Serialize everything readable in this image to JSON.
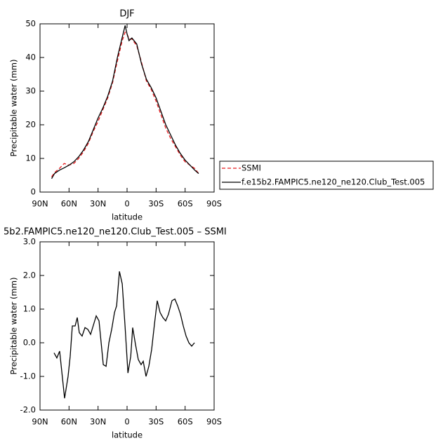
{
  "chart_data": [
    {
      "type": "line",
      "title": "DJF",
      "xlabel": "latitude",
      "ylabel": "Precipitable water (mm)",
      "xlim": [
        90,
        -90
      ],
      "xticks": [
        {
          "value": 90,
          "label": "90N"
        },
        {
          "value": 60,
          "label": "60N"
        },
        {
          "value": 30,
          "label": "30N"
        },
        0,
        {
          "value": -30,
          "label": "30S"
        },
        {
          "value": -60,
          "label": "60S"
        },
        {
          "value": -90,
          "label": "90S"
        }
      ],
      "ylim": [
        0,
        50
      ],
      "yticks": [
        0,
        10,
        20,
        30,
        40,
        50
      ],
      "legend": "right",
      "x": [
        78,
        75,
        70,
        65,
        60,
        55,
        50,
        45,
        40,
        35,
        30,
        25,
        20,
        15,
        10,
        5,
        2,
        0,
        -2,
        -5,
        -10,
        -15,
        -20,
        -25,
        -30,
        -35,
        -40,
        -45,
        -50,
        -55,
        -60,
        -65,
        -70,
        -74
      ],
      "series": [
        {
          "name": "SSMI",
          "color": "#e8191c",
          "linestyle": "dashed",
          "values": [
            4.5,
            5.8,
            7,
            8.5,
            8,
            8.5,
            10,
            12,
            14.5,
            18,
            21,
            24.5,
            28,
            32.5,
            39,
            45,
            47.5,
            47,
            45.5,
            45.5,
            43.5,
            38.5,
            33,
            30.5,
            27,
            23,
            19,
            16,
            13.5,
            11,
            9,
            8,
            7,
            5.5
          ]
        },
        {
          "name": "f.e15b2.FAMPIC5.ne120_ne120.Club_Test.005",
          "color": "#000000",
          "linestyle": "solid",
          "values": [
            4,
            5.5,
            6.5,
            7.2,
            8,
            9,
            10.5,
            12.5,
            15,
            18.5,
            22,
            25,
            28.5,
            33,
            40,
            46,
            49.5,
            47,
            45,
            45.8,
            44,
            38,
            33.5,
            31,
            28,
            24,
            20,
            17,
            14,
            11.5,
            9.5,
            8,
            6.5,
            5.5
          ]
        }
      ]
    },
    {
      "type": "line",
      "title": "5b2.FAMPIC5.ne120_ne120.Club_Test.005 – SSMI",
      "xlabel": "latitude",
      "ylabel": "Precipitable water (mm)",
      "xlim": [
        90,
        -90
      ],
      "xticks": [
        {
          "value": 90,
          "label": "90N"
        },
        {
          "value": 60,
          "label": "60N"
        },
        {
          "value": 30,
          "label": "30N"
        },
        0,
        {
          "value": -30,
          "label": "30S"
        },
        {
          "value": -60,
          "label": "60S"
        },
        {
          "value": -90,
          "label": "90S"
        }
      ],
      "ylim": [
        -2,
        3
      ],
      "yticks": [
        {
          "value": -2,
          "label": "-2.0"
        },
        {
          "value": -1,
          "label": "-1.0"
        },
        {
          "value": 0,
          "label": "0.0"
        },
        {
          "value": 1,
          "label": "1.0"
        },
        {
          "value": 2,
          "label": "2.0"
        },
        {
          "value": 3,
          "label": "3.0"
        }
      ],
      "x": [
        75.5,
        72.6,
        69.7,
        64.6,
        61,
        58.8,
        56.6,
        53.7,
        51.5,
        49.4,
        46.5,
        43.5,
        40.6,
        37.7,
        31.9,
        29,
        24.6,
        21.7,
        18.8,
        15.9,
        13,
        10.8,
        7.9,
        5,
        2.1,
        -0.9,
        -3.8,
        -5.8,
        -8.7,
        -11.6,
        -14.5,
        -16.7,
        -19.6,
        -22.5,
        -25.4,
        -28.3,
        -31.2,
        -34.1,
        -37,
        -39.9,
        -42.8,
        -46.4,
        -49.4,
        -52.3,
        -55.2,
        -58.1,
        -61,
        -63.9,
        -66.8,
        -69.7
      ],
      "series": [
        {
          "color": "#000000",
          "linestyle": "solid",
          "values": [
            -0.3,
            -0.45,
            -0.25,
            -1.65,
            -1,
            -0.4,
            0.5,
            0.5,
            0.75,
            0.3,
            0.2,
            0.45,
            0.4,
            0.25,
            0.8,
            0.65,
            -0.65,
            -0.7,
            0,
            0.4,
            0.9,
            1.1,
            2.12,
            1.75,
            0.5,
            -0.9,
            -0.4,
            0.45,
            -0.05,
            -0.5,
            -0.65,
            -0.55,
            -1,
            -0.7,
            -0.2,
            0.55,
            1.25,
            0.9,
            0.75,
            0.65,
            0.85,
            1.25,
            1.3,
            1.1,
            0.85,
            0.5,
            0.2,
            0,
            -0.1,
            0
          ]
        }
      ]
    }
  ]
}
